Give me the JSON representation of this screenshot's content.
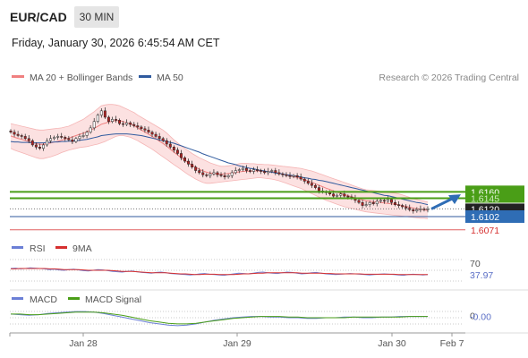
{
  "header": {
    "pair": "EUR/CAD",
    "timeframe": "30 MIN",
    "datetime": "Friday, January 30, 2026 6:45:54 AM CET"
  },
  "colors": {
    "bollinger": "#f08080",
    "bollinger_fill": "#fcdcdc",
    "ma50": "#2f5a9e",
    "resistance": "#4a9e17",
    "support": "#2f5a9e",
    "support2": "#e06060",
    "arrow": "#2f6db5",
    "rsi": "#6b7fd6",
    "rsi_ma": "#d63030",
    "macd": "#6b7fd6",
    "macd_signal": "#4a9e17",
    "candle_up": "#ffffff",
    "candle_down": "#b22222"
  },
  "chart_data": [
    {
      "type": "candlestick",
      "legend": [
        {
          "label": "MA 20 + Bollinger Bands",
          "color": "#f08080"
        },
        {
          "label": "MA 50",
          "color": "#2f5a9e"
        }
      ],
      "credit": "Research © 2026 Trading Central",
      "x_labels": [
        "Jan 28",
        "Jan 29",
        "Jan 30",
        "Feb 7"
      ],
      "ylim": [
        1.606,
        1.64
      ],
      "levels": [
        {
          "label": "1.6160",
          "value": 1.616,
          "color": "#4a9e17",
          "style": "resistance-box",
          "line": "green"
        },
        {
          "label": "1.6145",
          "value": 1.6145,
          "color": "#4a9e17",
          "style": "line-only",
          "line": "green"
        },
        {
          "label": "1.6120",
          "value": 1.612,
          "color": "#222222",
          "style": "current",
          "line": "dotted"
        },
        {
          "label": "1.6102",
          "value": 1.6102,
          "color": "#2f6db5",
          "style": "support-box",
          "line": "blue"
        },
        {
          "label": "1.6071",
          "value": 1.6071,
          "color": "#d63030",
          "style": "text",
          "line": "red"
        }
      ],
      "series": {
        "close": [
          1.63,
          1.6295,
          1.6292,
          1.629,
          1.6285,
          1.628,
          1.627,
          1.6265,
          1.6262,
          1.627,
          1.628,
          1.6285,
          1.6288,
          1.629,
          1.6288,
          1.6285,
          1.6282,
          1.6278,
          1.6285,
          1.629,
          1.6292,
          1.63,
          1.631,
          1.6325,
          1.634,
          1.635,
          1.6335,
          1.6325,
          1.633,
          1.6328,
          1.632,
          1.6318,
          1.6322,
          1.6318,
          1.6315,
          1.6312,
          1.6308,
          1.6305,
          1.63,
          1.6295,
          1.629,
          1.6285,
          1.628,
          1.6272,
          1.6265,
          1.6258,
          1.625,
          1.624,
          1.6232,
          1.6225,
          1.6218,
          1.621,
          1.6205,
          1.62,
          1.6198,
          1.6202,
          1.6205,
          1.62,
          1.6198,
          1.6195,
          1.6198,
          1.6205,
          1.621,
          1.6212,
          1.6215,
          1.621,
          1.6208,
          1.6212,
          1.621,
          1.6208,
          1.6205,
          1.6208,
          1.621,
          1.6205,
          1.6202,
          1.62,
          1.6198,
          1.6196,
          1.6198,
          1.6195,
          1.619,
          1.6185,
          1.618,
          1.6175,
          1.617,
          1.6162,
          1.616,
          1.6158,
          1.6155,
          1.615,
          1.6152,
          1.6155,
          1.615,
          1.6148,
          1.6145,
          1.614,
          1.6135,
          1.6128,
          1.613,
          1.6135,
          1.6132,
          1.6138,
          1.614,
          1.6138,
          1.6142,
          1.6135,
          1.613,
          1.6128,
          1.6125,
          1.6122,
          1.6118,
          1.6115,
          1.6118,
          1.612,
          1.6118,
          1.612
        ],
        "ma50": [
          1.6278,
          1.6277,
          1.6277,
          1.6276,
          1.6276,
          1.6276,
          1.6275,
          1.6275,
          1.6275,
          1.6275,
          1.6276,
          1.6276,
          1.6277,
          1.6277,
          1.6278,
          1.6278,
          1.6279,
          1.6279,
          1.628,
          1.6281,
          1.6282,
          1.6283,
          1.6285,
          1.6287,
          1.6289,
          1.6292,
          1.6293,
          1.6294,
          1.6295,
          1.6296,
          1.6296,
          1.6296,
          1.6296,
          1.6295,
          1.6294,
          1.6293,
          1.6292,
          1.629,
          1.6288,
          1.6286,
          1.6284,
          1.6282,
          1.628,
          1.6278,
          1.6276,
          1.6274,
          1.6271,
          1.6268,
          1.6265,
          1.6262,
          1.6259,
          1.6256,
          1.6253,
          1.6249,
          1.6246,
          1.6243,
          1.624,
          1.6237,
          1.6234,
          1.6231,
          1.6228,
          1.6226,
          1.6224,
          1.6221,
          1.6219,
          1.6217,
          1.6215,
          1.6214,
          1.6212,
          1.621,
          1.6209,
          1.6207,
          1.6206,
          1.6204,
          1.6203,
          1.6202,
          1.62,
          1.6199,
          1.6198,
          1.6196,
          1.6195,
          1.6193,
          1.6192,
          1.619,
          1.6189,
          1.6187,
          1.6186,
          1.6184,
          1.6182,
          1.618,
          1.6178,
          1.6176,
          1.6174,
          1.6172,
          1.617,
          1.6168,
          1.6166,
          1.6164,
          1.6162,
          1.616,
          1.6158,
          1.6156,
          1.6154,
          1.6152,
          1.6151,
          1.6149,
          1.6147,
          1.6145,
          1.6143,
          1.6141,
          1.6139,
          1.6137,
          1.6135,
          1.6134,
          1.6132,
          1.613
        ],
        "bb_upper": [
          1.632,
          1.6318,
          1.6316,
          1.6314,
          1.6312,
          1.631,
          1.6308,
          1.6306,
          1.6305,
          1.6305,
          1.6306,
          1.6307,
          1.6308,
          1.6309,
          1.631,
          1.6312,
          1.6314,
          1.6318,
          1.6322,
          1.6326,
          1.633,
          1.6336,
          1.6342,
          1.6348,
          1.6355,
          1.6362,
          1.6364,
          1.6365,
          1.6365,
          1.6364,
          1.6362,
          1.6358,
          1.6354,
          1.635,
          1.6346,
          1.634,
          1.6335,
          1.633,
          1.6325,
          1.632,
          1.6315,
          1.631,
          1.6305,
          1.6298,
          1.629,
          1.6282,
          1.6275,
          1.6268,
          1.6262,
          1.6256,
          1.625,
          1.6245,
          1.624,
          1.6236,
          1.6232,
          1.6228,
          1.6225,
          1.6222,
          1.622,
          1.622,
          1.6221,
          1.6222,
          1.6224,
          1.6226,
          1.6227,
          1.6227,
          1.6226,
          1.6226,
          1.6225,
          1.6225,
          1.6224,
          1.6224,
          1.6223,
          1.6222,
          1.6221,
          1.622,
          1.6219,
          1.6218,
          1.6217,
          1.6216,
          1.6215,
          1.6213,
          1.6211,
          1.6209,
          1.6206,
          1.6203,
          1.62,
          1.6197,
          1.6194,
          1.6191,
          1.6188,
          1.6185,
          1.6182,
          1.6179,
          1.6176,
          1.6173,
          1.617,
          1.6167,
          1.6165,
          1.6164,
          1.6163,
          1.6162,
          1.6161,
          1.616,
          1.6159,
          1.6158,
          1.6157,
          1.6155,
          1.6153,
          1.615,
          1.6147,
          1.6144,
          1.6142,
          1.614,
          1.6138,
          1.6136
        ],
        "bb_lower": [
          1.6262,
          1.6258,
          1.6255,
          1.6252,
          1.6249,
          1.6246,
          1.6243,
          1.624,
          1.6238,
          1.6238,
          1.624,
          1.6242,
          1.6245,
          1.6248,
          1.6252,
          1.6255,
          1.6258,
          1.626,
          1.6262,
          1.6264,
          1.6265,
          1.6266,
          1.6268,
          1.627,
          1.6272,
          1.6275,
          1.6278,
          1.6282,
          1.6286,
          1.629,
          1.6292,
          1.6292,
          1.629,
          1.6288,
          1.6284,
          1.628,
          1.6275,
          1.627,
          1.6265,
          1.626,
          1.6254,
          1.6248,
          1.6242,
          1.6236,
          1.623,
          1.6224,
          1.6218,
          1.6212,
          1.6206,
          1.62,
          1.6195,
          1.619,
          1.6186,
          1.6182,
          1.618,
          1.618,
          1.6181,
          1.6182,
          1.6183,
          1.6184,
          1.6185,
          1.6186,
          1.6187,
          1.6188,
          1.6189,
          1.619,
          1.6191,
          1.6192,
          1.6193,
          1.6193,
          1.6192,
          1.6191,
          1.619,
          1.6188,
          1.6186,
          1.6183,
          1.618,
          1.6177,
          1.6174,
          1.6171,
          1.6168,
          1.6164,
          1.616,
          1.6156,
          1.6152,
          1.6148,
          1.6144,
          1.614,
          1.6137,
          1.6134,
          1.6131,
          1.6128,
          1.6125,
          1.6123,
          1.6121,
          1.6119,
          1.6117,
          1.6115,
          1.6113,
          1.6112,
          1.6111,
          1.611,
          1.6109,
          1.6108,
          1.6107,
          1.6106,
          1.6105,
          1.6104,
          1.6103,
          1.6102,
          1.6101,
          1.61,
          1.6099,
          1.6098,
          1.6098,
          1.6097
        ]
      }
    },
    {
      "type": "line",
      "legend": [
        {
          "label": "RSI",
          "color": "#6b7fd6"
        },
        {
          "label": "9MA",
          "color": "#d63030"
        }
      ],
      "ylim": [
        10,
        90
      ],
      "ticks": [
        {
          "label": "70",
          "value": 70
        }
      ],
      "current": {
        "label": "37.97",
        "value": 37.97
      },
      "series": [
        {
          "name": "RSI",
          "values": [
            55,
            56,
            54,
            55,
            57,
            56,
            55,
            54,
            52,
            53,
            51,
            50,
            52,
            53,
            51,
            49,
            48,
            50,
            52,
            51,
            49,
            47,
            46,
            45,
            47,
            48,
            46,
            44,
            43,
            42,
            44,
            45,
            43,
            41,
            40,
            39,
            38,
            37,
            38,
            40,
            41,
            39,
            38,
            37,
            36,
            38,
            40,
            42,
            41,
            40,
            42,
            44,
            45,
            43,
            42,
            41,
            43,
            45,
            44,
            42,
            40,
            41,
            43,
            44,
            42,
            40,
            39,
            38,
            39,
            40,
            41,
            40,
            39,
            38,
            37,
            38,
            39,
            40,
            39,
            38,
            37,
            36,
            38,
            39,
            38,
            37,
            38
          ]
        },
        {
          "name": "9MA",
          "values": [
            54,
            54,
            55,
            55,
            55,
            55,
            55,
            55,
            54,
            54,
            53,
            52,
            52,
            52,
            52,
            51,
            50,
            50,
            50,
            50,
            50,
            49,
            48,
            47,
            47,
            47,
            46,
            45,
            44,
            43,
            43,
            43,
            43,
            42,
            41,
            40,
            40,
            39,
            38,
            38,
            39,
            39,
            39,
            38,
            38,
            38,
            38,
            39,
            40,
            40,
            41,
            42,
            42,
            43,
            43,
            43,
            43,
            43,
            43,
            43,
            42,
            42,
            42,
            42,
            42,
            41,
            41,
            40,
            40,
            40,
            40,
            40,
            40,
            39,
            39,
            39,
            39,
            39,
            39,
            39,
            38,
            38,
            38,
            38,
            38,
            38,
            38
          ]
        }
      ]
    },
    {
      "type": "line",
      "legend": [
        {
          "label": "MACD",
          "color": "#6b7fd6"
        },
        {
          "label": "MACD Signal",
          "color": "#4a9e17"
        }
      ],
      "ylim": [
        -0.002,
        0.0012
      ],
      "ticks": [
        {
          "label": "0",
          "value": 0
        }
      ],
      "current": {
        "label": "-0.00",
        "value": -0.0002
      },
      "series": [
        {
          "name": "MACD",
          "values": [
            0.0002,
            0.0001,
            0.0,
            0.0001,
            0.0003,
            0.0004,
            0.0005,
            0.0006,
            0.0006,
            0.0005,
            0.0003,
            0.0,
            -0.0003,
            -0.0006,
            -0.0009,
            -0.0012,
            -0.0014,
            -0.0016,
            -0.0017,
            -0.0016,
            -0.0014,
            -0.0011,
            -0.0008,
            -0.0006,
            -0.0004,
            -0.0003,
            -0.0002,
            -0.0002,
            -0.0003,
            -0.0003,
            -0.0004,
            -0.0004,
            -0.0005,
            -0.0005,
            -0.0004,
            -0.0004,
            -0.0003,
            -0.0003,
            -0.0004,
            -0.0004,
            -0.0003,
            -0.0003,
            -0.0002,
            -0.0002,
            -0.0002,
            -0.0002
          ]
        },
        {
          "name": "MACD Signal",
          "values": [
            0.0002,
            0.0002,
            0.0001,
            0.0001,
            0.0002,
            0.0003,
            0.0004,
            0.0005,
            0.0005,
            0.0005,
            0.0004,
            0.0002,
            0.0,
            -0.0003,
            -0.0006,
            -0.0009,
            -0.0011,
            -0.0013,
            -0.0014,
            -0.0014,
            -0.0013,
            -0.0011,
            -0.0009,
            -0.0007,
            -0.0005,
            -0.0004,
            -0.0003,
            -0.0002,
            -0.0002,
            -0.0002,
            -0.0003,
            -0.0003,
            -0.0004,
            -0.0004,
            -0.0004,
            -0.0004,
            -0.0004,
            -0.0003,
            -0.0003,
            -0.0003,
            -0.0003,
            -0.0003,
            -0.0003,
            -0.0002,
            -0.0002,
            -0.0002
          ]
        }
      ]
    }
  ]
}
